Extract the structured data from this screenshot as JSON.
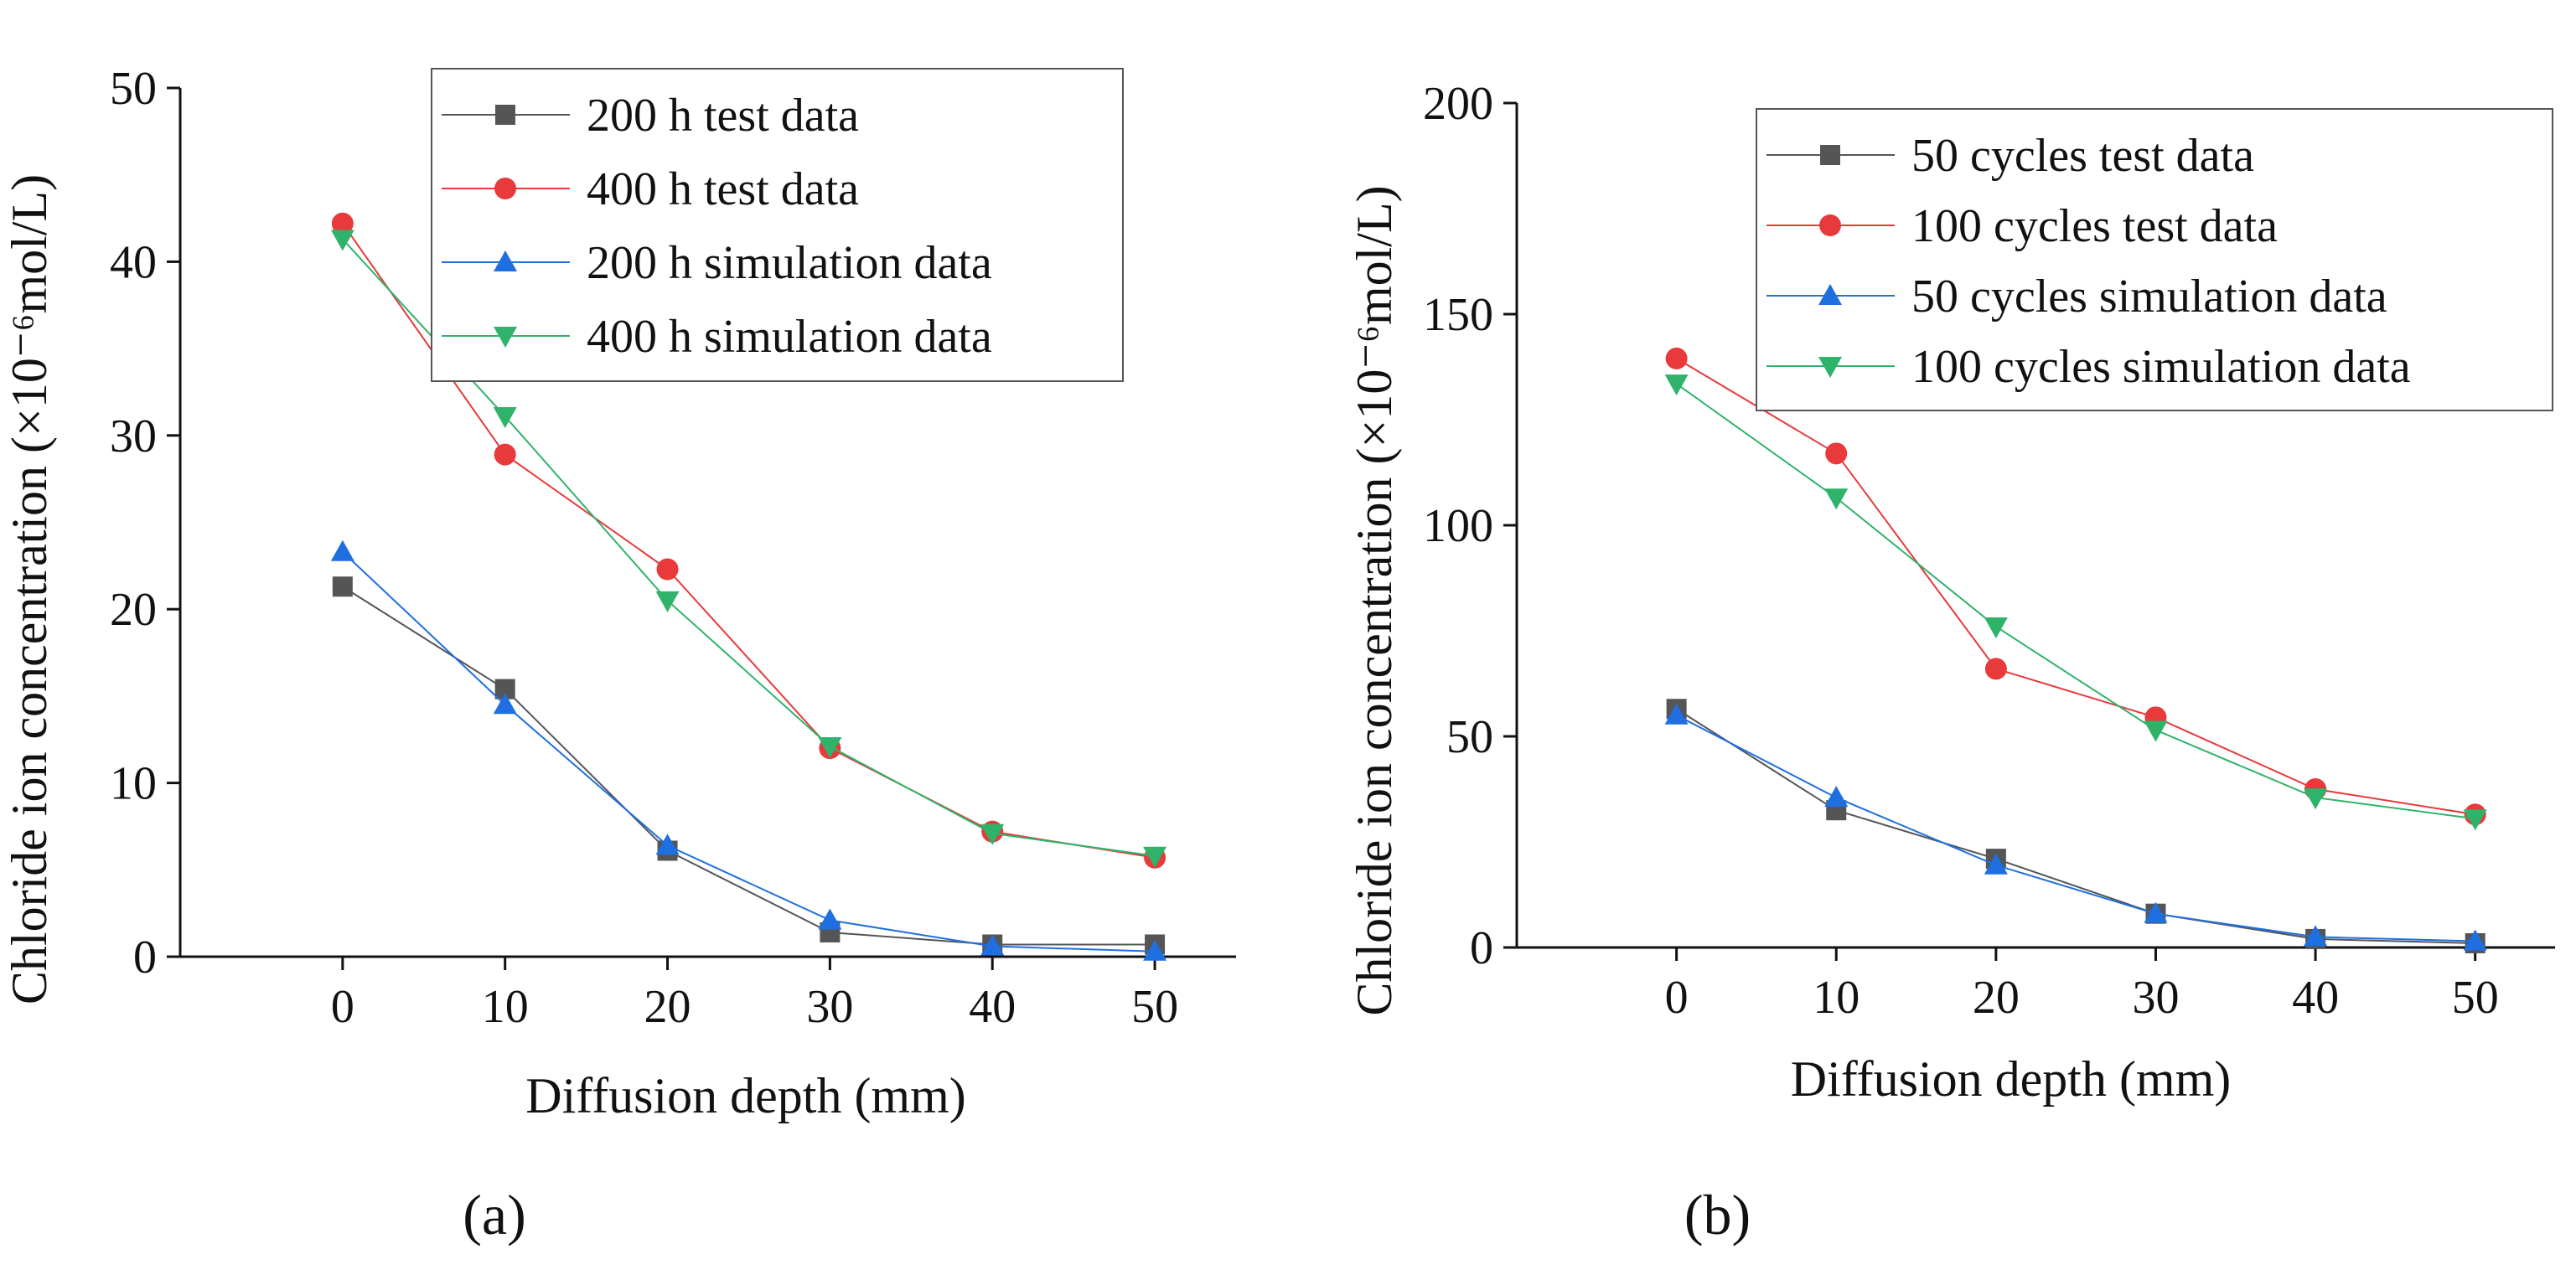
{
  "chart_data": [
    {
      "type": "line",
      "panel_label": "(a)",
      "xlabel": "Diffusion depth (mm)",
      "ylabel": "Chloride ion concentration (×10⁻⁶mol/L)",
      "xlim": [
        -10,
        55
      ],
      "ylim": [
        0,
        50
      ],
      "xticks": [
        0,
        10,
        20,
        30,
        40,
        50
      ],
      "yticks": [
        0,
        10,
        20,
        30,
        40,
        50
      ],
      "grid": false,
      "legend_position": "top-right",
      "x": [
        0,
        10,
        20,
        30,
        40,
        50
      ],
      "series": [
        {
          "name": "200 h test data",
          "marker": "square",
          "color": "#555555",
          "values": [
            21.3,
            15.4,
            6.1,
            1.4,
            0.7,
            0.7
          ]
        },
        {
          "name": "400 h test data",
          "marker": "circle",
          "color": "#e8393b",
          "values": [
            42.2,
            28.9,
            22.3,
            12.0,
            7.2,
            5.7
          ]
        },
        {
          "name": "200 h simulation data",
          "marker": "triangle-up",
          "color": "#1f6fe0",
          "values": [
            23.3,
            14.5,
            6.4,
            2.1,
            0.6,
            0.3
          ]
        },
        {
          "name": "400 h simulation data",
          "marker": "triangle-down",
          "color": "#2fb36a",
          "values": [
            41.3,
            31.1,
            20.5,
            12.1,
            7.1,
            5.8
          ]
        }
      ]
    },
    {
      "type": "line",
      "panel_label": "(b)",
      "xlabel": "Diffusion depth (mm)",
      "ylabel": "Chloride ion concentration (×10⁻⁶mol/L)",
      "xlim": [
        -10,
        55
      ],
      "ylim": [
        0,
        200
      ],
      "xticks": [
        0,
        10,
        20,
        30,
        40,
        50
      ],
      "yticks": [
        0,
        50,
        100,
        150,
        200
      ],
      "grid": false,
      "legend_position": "top-right",
      "x": [
        0,
        10,
        20,
        30,
        40,
        50
      ],
      "series": [
        {
          "name": "50 cycles test data",
          "marker": "square",
          "color": "#555555",
          "values": [
            56.5,
            32.5,
            21.0,
            8.0,
            2.0,
            1.0
          ]
        },
        {
          "name": "100 cycles test data",
          "marker": "circle",
          "color": "#e8393b",
          "values": [
            139.5,
            117.0,
            66.0,
            54.5,
            37.5,
            31.5
          ]
        },
        {
          "name": "50 cycles simulation data",
          "marker": "triangle-up",
          "color": "#1f6fe0",
          "values": [
            55.0,
            35.5,
            19.5,
            8.0,
            2.5,
            1.5
          ]
        },
        {
          "name": "100 cycles simulation data",
          "marker": "triangle-down",
          "color": "#2fb36a",
          "values": [
            133.5,
            106.5,
            76.0,
            51.5,
            35.5,
            30.5
          ]
        }
      ]
    }
  ]
}
